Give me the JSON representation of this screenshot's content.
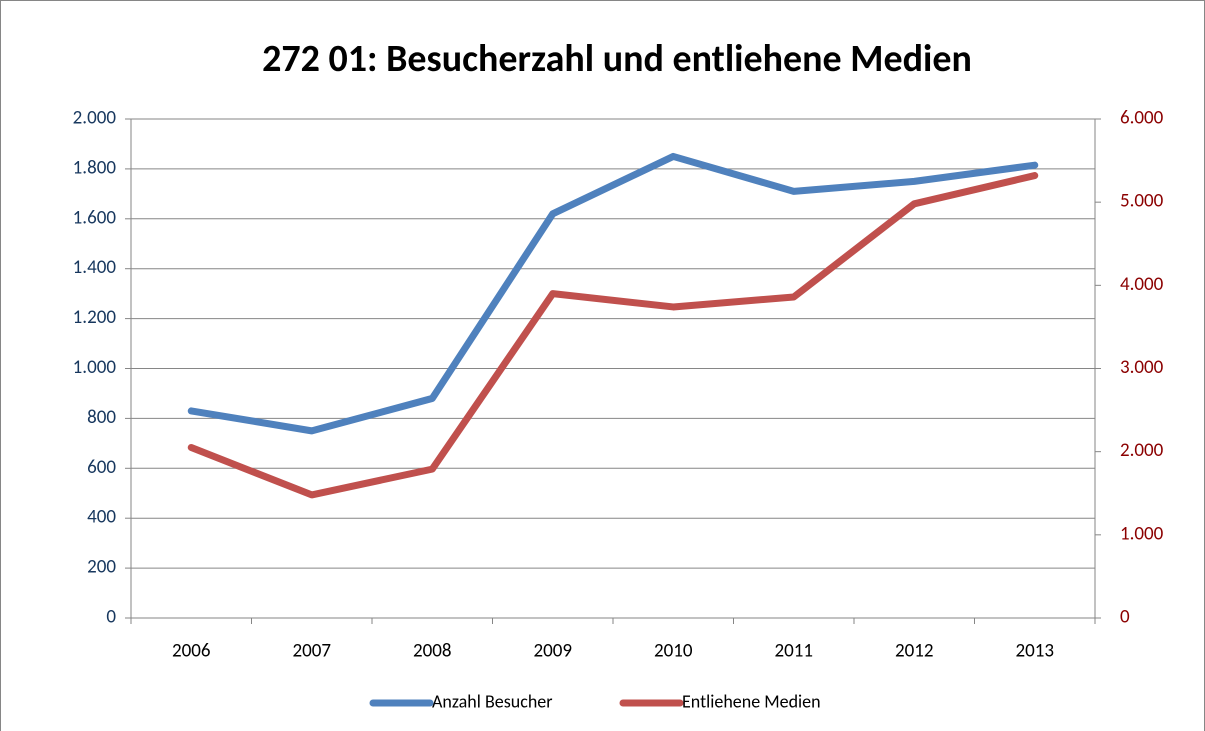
{
  "chart_data": {
    "type": "line",
    "title": "272 01: Besucherzahl und entliehene Medien",
    "categories": [
      "2006",
      "2007",
      "2008",
      "2009",
      "2010",
      "2011",
      "2012",
      "2013"
    ],
    "series": [
      {
        "name": "Anzahl Besucher",
        "color": "#4f81bd",
        "values": [
          830,
          750,
          880,
          1620,
          1850,
          1710,
          1750,
          1815
        ]
      },
      {
        "name": "Entliehene Medien",
        "color": "#c0504d",
        "axis": "y2",
        "values": [
          2050,
          1480,
          1790,
          3900,
          3740,
          3860,
          4980,
          5320
        ]
      }
    ],
    "ylim": [
      0,
      2000
    ],
    "yticks": [
      0,
      200,
      400,
      600,
      800,
      {
        "value": 1000,
        "label": "1.000"
      },
      {
        "value": 1200,
        "label": "1.200"
      },
      {
        "value": 1400,
        "label": "1.400"
      },
      {
        "value": 1600,
        "label": "1.600"
      },
      {
        "value": 1800,
        "label": "1.800"
      },
      {
        "value": 2000,
        "label": "2.000"
      }
    ],
    "y2lim": [
      0,
      6000
    ],
    "y2ticks": [
      0,
      {
        "value": 1000,
        "label": "1.000"
      },
      {
        "value": 2000,
        "label": "2.000"
      },
      {
        "value": 3000,
        "label": "3.000"
      },
      {
        "value": 4000,
        "label": "4.000"
      },
      {
        "value": 5000,
        "label": "5.000"
      },
      {
        "value": 6000,
        "label": "6.000"
      }
    ],
    "grid": true,
    "legend": "bottom"
  }
}
